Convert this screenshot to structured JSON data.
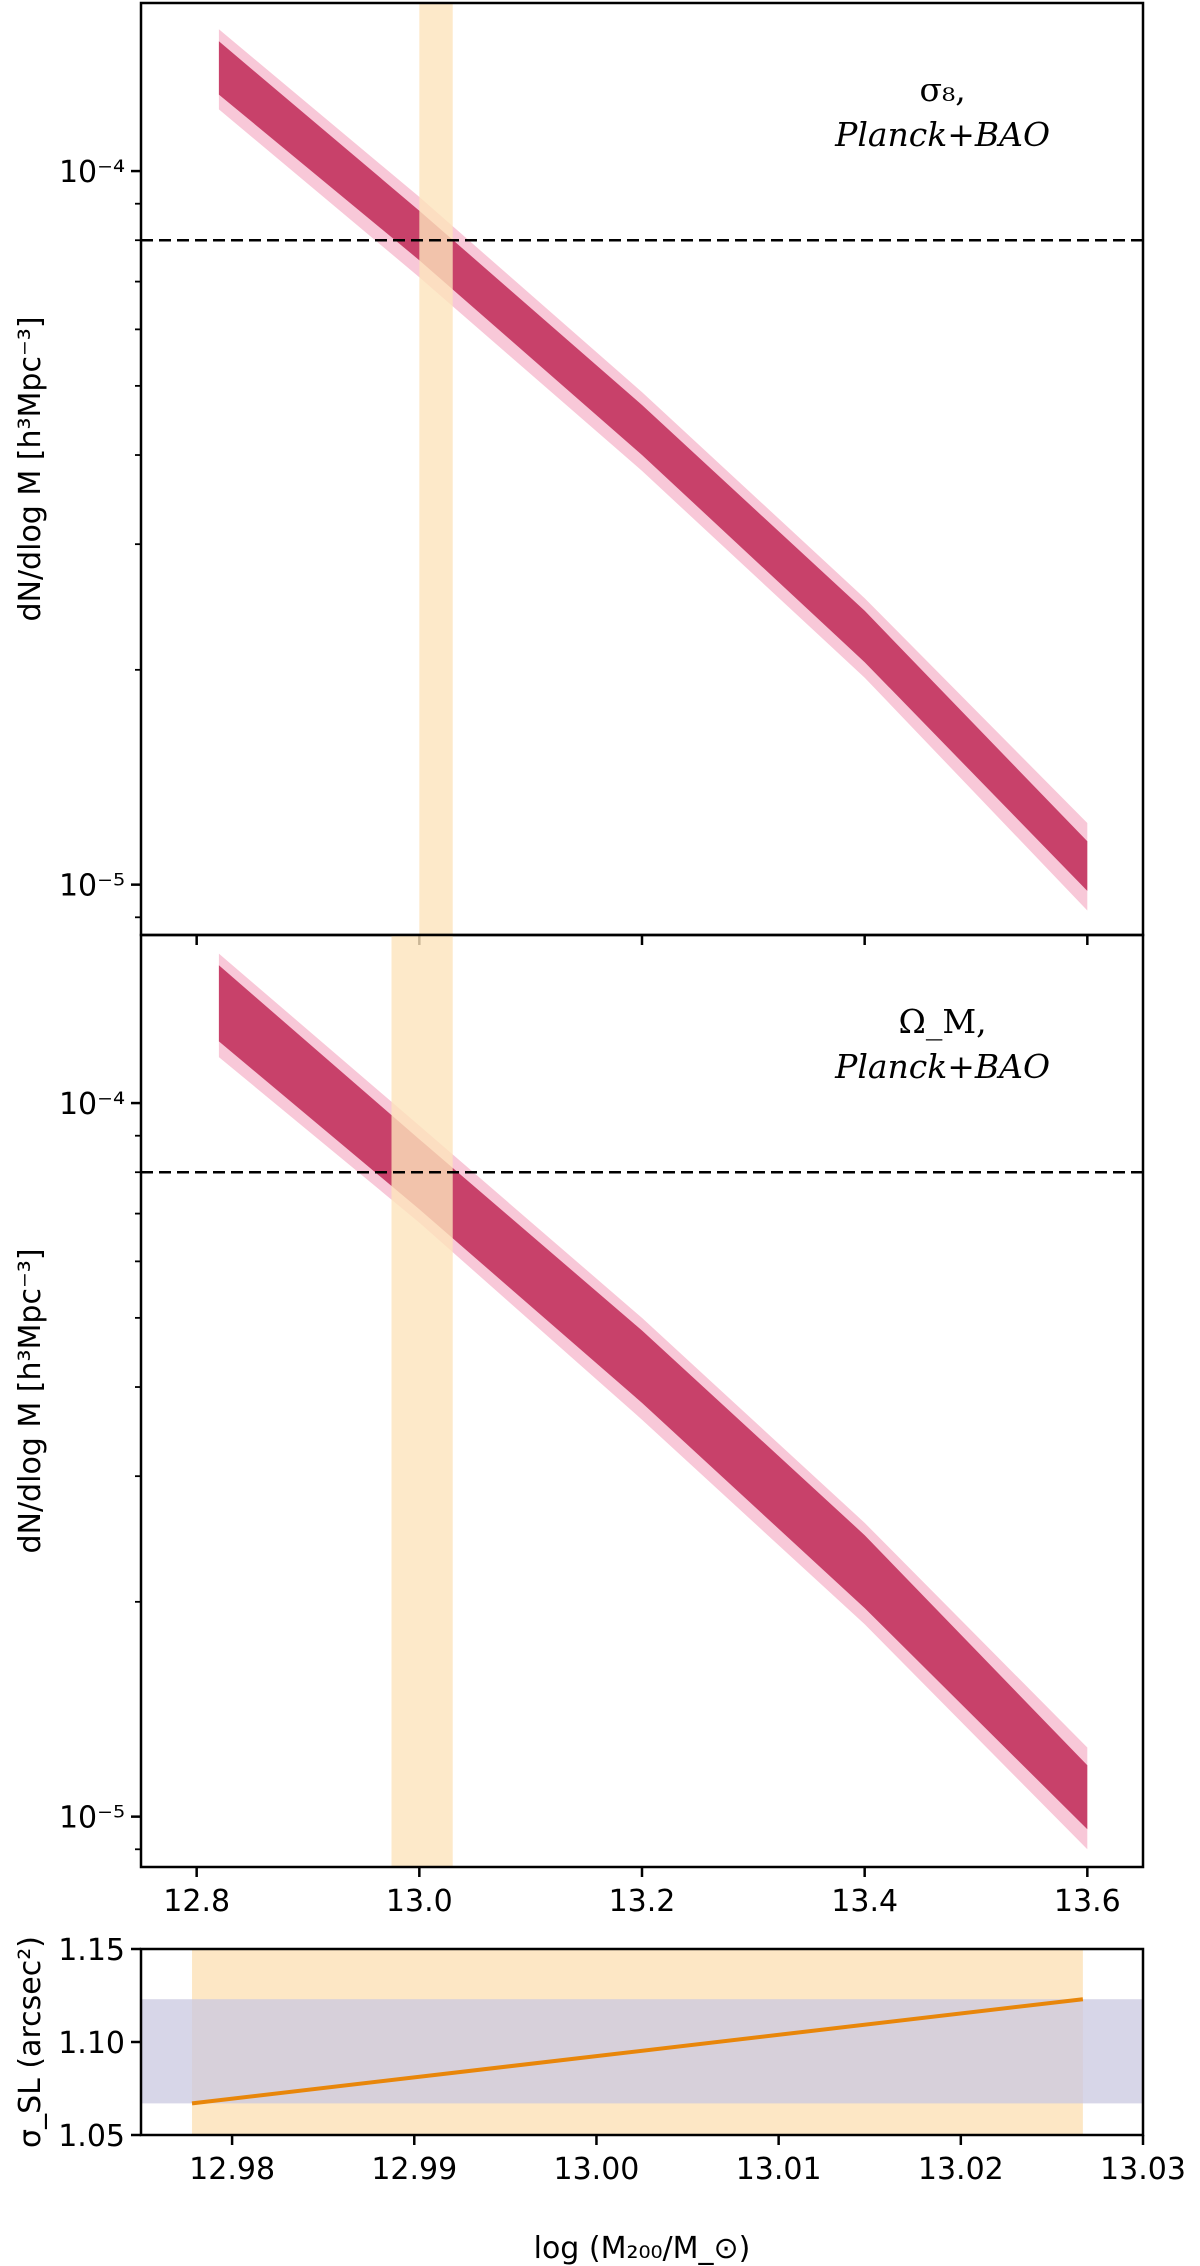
{
  "chart_data": [
    {
      "panel": "top",
      "type": "area",
      "ylabel": "dN/dlog M [h³Mpc⁻³]",
      "yscale": "log",
      "ylim": [
        8.5e-06,
        0.000172
      ],
      "xlim": [
        12.75,
        13.65
      ],
      "yticks": [
        0.0001,
        1e-05
      ],
      "ytick_labels": [
        "10⁻⁴",
        "10⁻⁵"
      ],
      "annotation": [
        "σ₈,",
        "Planck+BAO"
      ],
      "hline": 8e-05,
      "vband": [
        13.0,
        13.03
      ],
      "band_x": [
        12.82,
        13.0,
        13.2,
        13.4,
        13.6
      ],
      "band_inner": [
        [
          0.000128,
          0.000152
        ],
        [
          7.5e-05,
          8.8e-05
        ],
        [
          4e-05,
          4.7e-05
        ],
        [
          2.05e-05,
          2.42e-05
        ],
        [
          9.8e-06,
          1.15e-05
        ]
      ],
      "band_outer": [
        [
          0.000122,
          0.000158
        ],
        [
          7.1e-05,
          9.2e-05
        ],
        [
          3.8e-05,
          4.9e-05
        ],
        [
          1.95e-05,
          2.52e-05
        ],
        [
          9.2e-06,
          1.22e-05
        ]
      ]
    },
    {
      "panel": "middle",
      "type": "area",
      "ylabel": "dN/dlog M [h³Mpc⁻³]",
      "xlabel": "",
      "yscale": "log",
      "ylim": [
        8.5e-06,
        0.000172
      ],
      "xlim": [
        12.75,
        13.65
      ],
      "xticks": [
        12.8,
        13.0,
        13.2,
        13.4,
        13.6
      ],
      "xtick_labels": [
        "12.8",
        "13.0",
        "13.2",
        "13.4",
        "13.6"
      ],
      "yticks": [
        0.0001,
        1e-05
      ],
      "ytick_labels": [
        "10⁻⁴",
        "10⁻⁵"
      ],
      "annotation": [
        "Ω_M,",
        "Planck+BAO"
      ],
      "hline": 8e-05,
      "vband": [
        12.975,
        13.03
      ],
      "band_x": [
        12.82,
        13.0,
        13.2,
        13.4,
        13.6
      ],
      "band_inner": [
        [
          0.000122,
          0.000156
        ],
        [
          7.1e-05,
          8.9e-05
        ],
        [
          3.8e-05,
          4.8e-05
        ],
        [
          1.96e-05,
          2.48e-05
        ],
        [
          9.6e-06,
          1.18e-05
        ]
      ],
      "band_outer": [
        [
          0.000116,
          0.000162
        ],
        [
          6.8e-05,
          9.3e-05
        ],
        [
          3.6e-05,
          5e-05
        ],
        [
          1.86e-05,
          2.58e-05
        ],
        [
          9e-06,
          1.25e-05
        ]
      ]
    },
    {
      "panel": "bottom",
      "type": "line",
      "xlabel": "log (M₂₀₀/M_⊙)",
      "ylabel": "σ_SL (arcsec²)",
      "xlim": [
        12.975,
        13.03
      ],
      "ylim": [
        1.05,
        1.15
      ],
      "xticks": [
        12.98,
        12.99,
        13.0,
        13.01,
        13.02,
        13.03
      ],
      "xtick_labels": [
        "12.98",
        "12.99",
        "13.00",
        "13.01",
        "13.02",
        "13.03"
      ],
      "yticks": [
        1.05,
        1.1,
        1.15
      ],
      "ytick_labels": [
        "1.05",
        "1.10",
        "1.15"
      ],
      "hband": [
        1.067,
        1.123
      ],
      "vband": [
        12.9778,
        13.0267
      ],
      "x": [
        12.9778,
        13.0267
      ],
      "y": [
        1.067,
        1.123
      ]
    }
  ],
  "colors": {
    "band_inner": "#c8416a",
    "band_outer": "#f8c8d8",
    "vband": "#fde3bb",
    "hband": "#c9c8e0",
    "line": "#e8860a"
  }
}
